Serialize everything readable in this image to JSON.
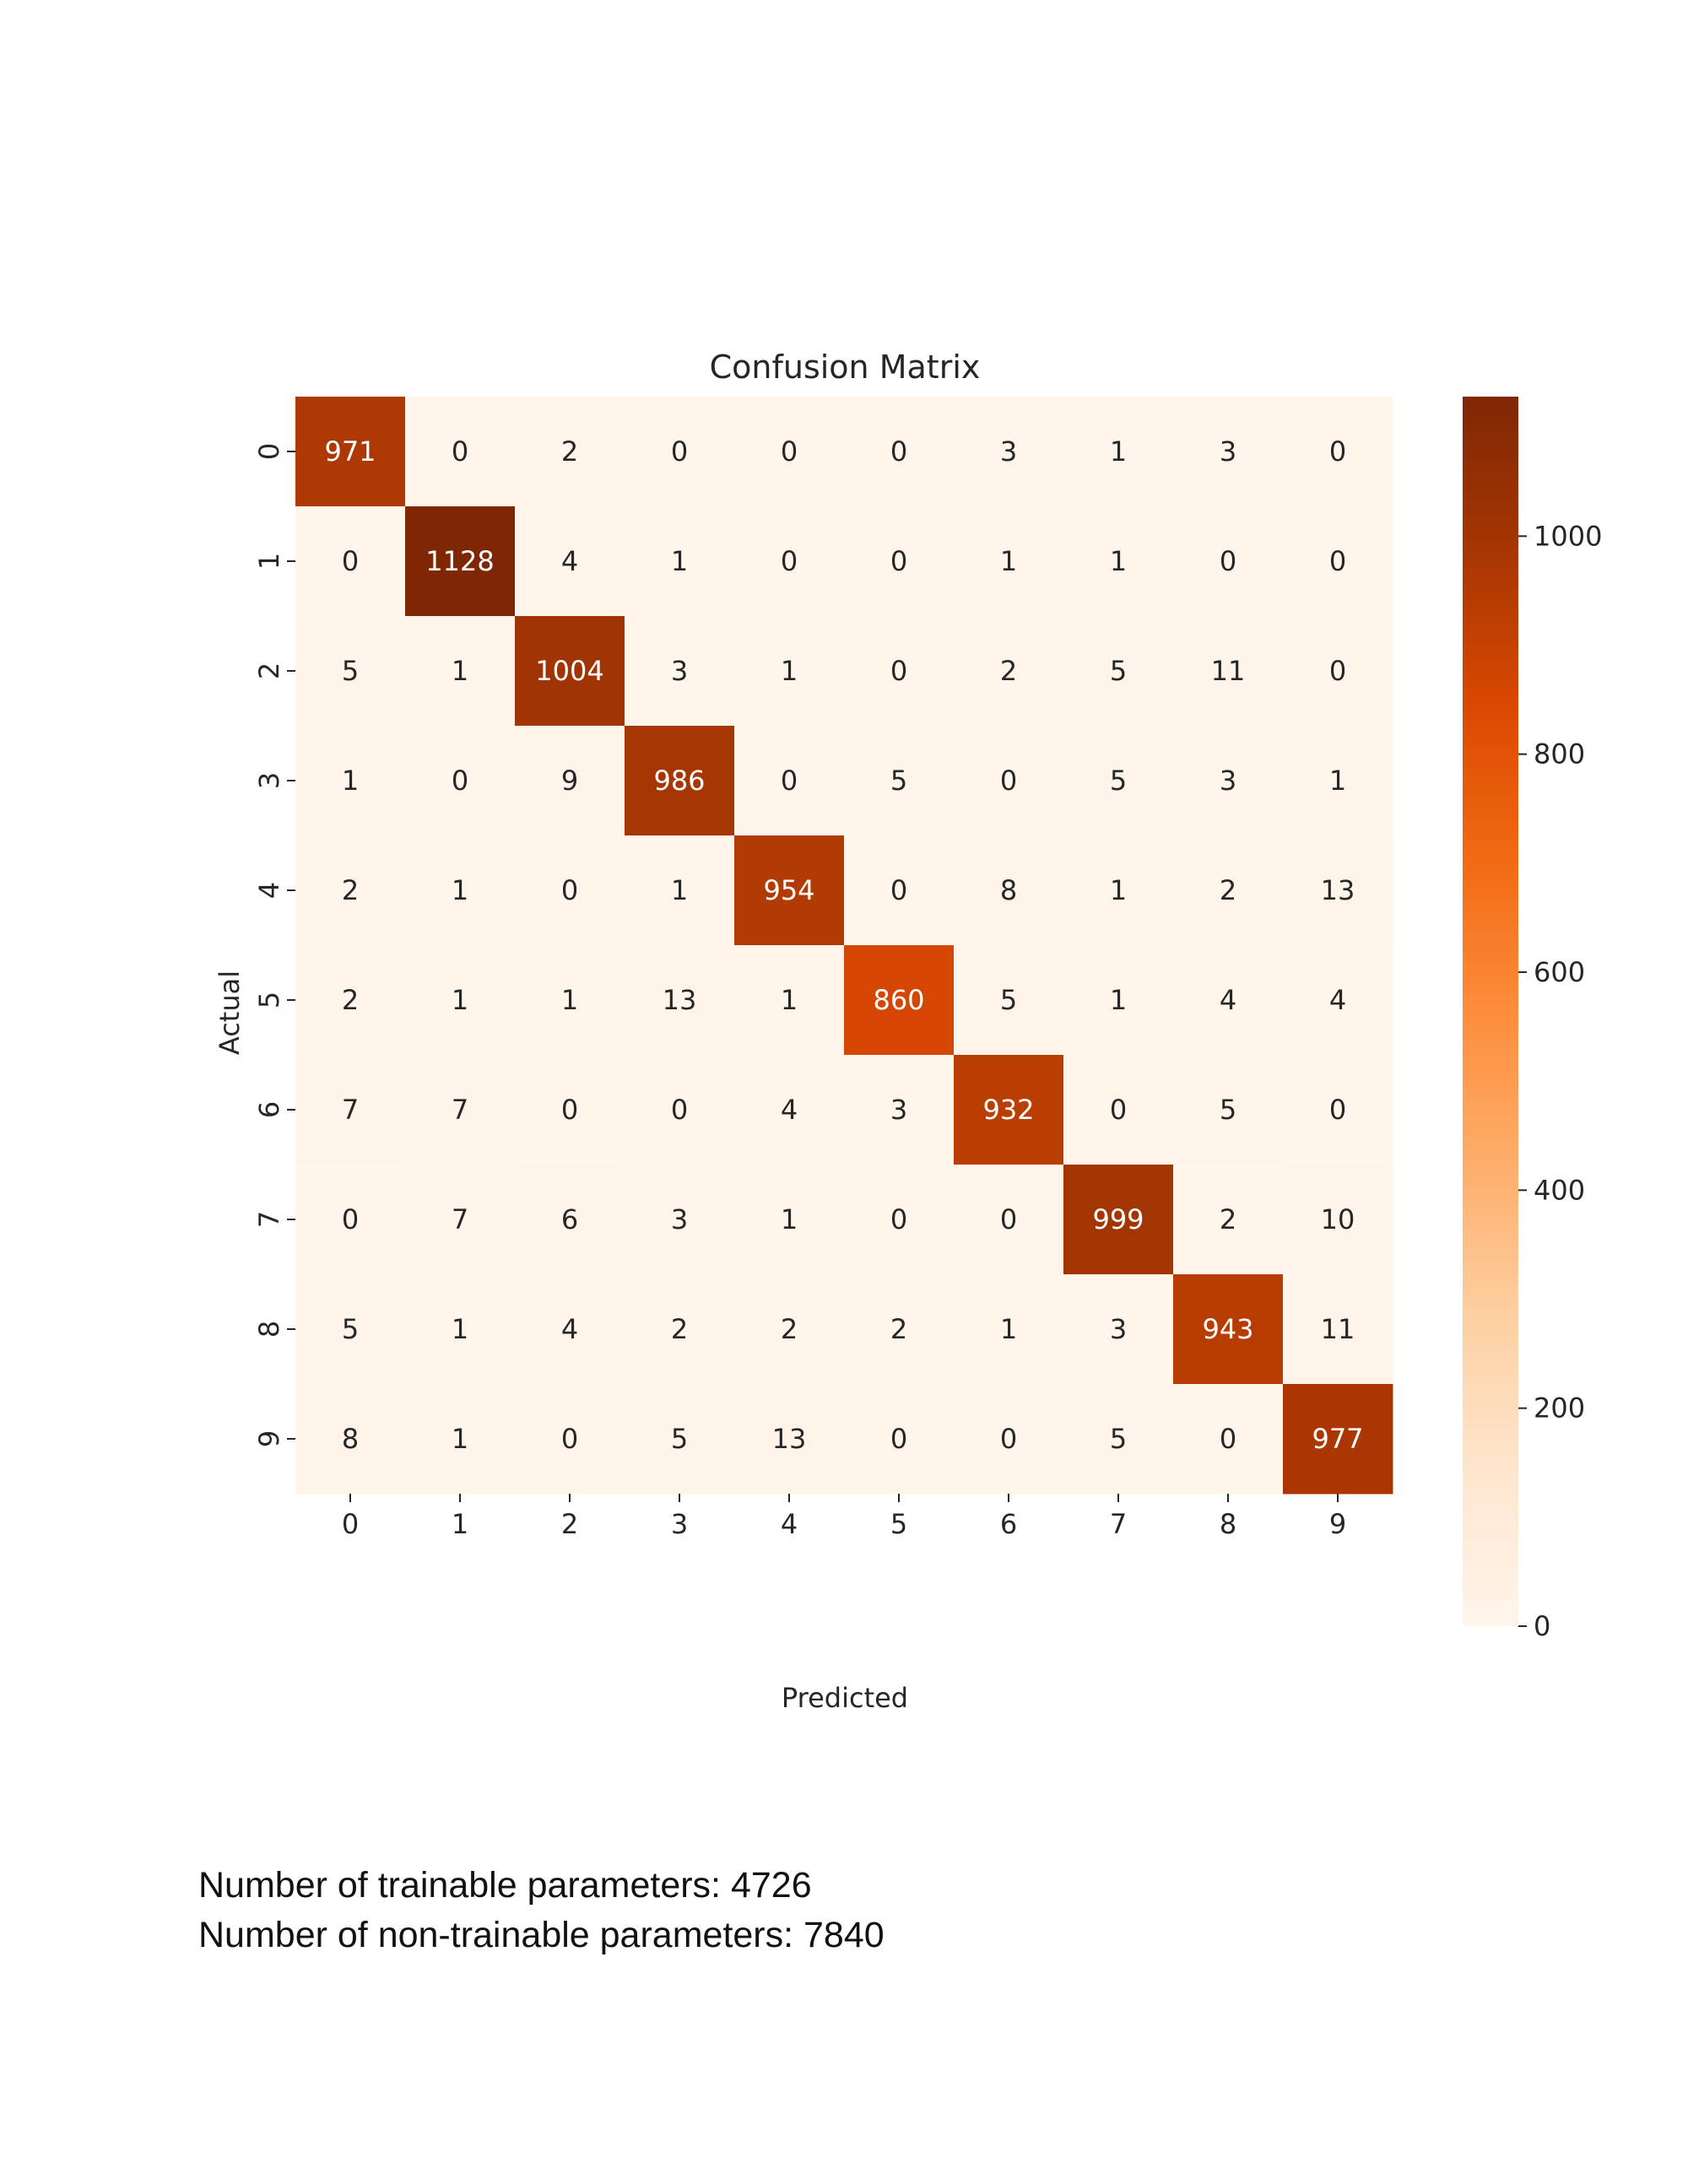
{
  "chart_data": {
    "type": "heatmap",
    "title": "Confusion Matrix",
    "xlabel": "Predicted",
    "ylabel": "Actual",
    "x_categories": [
      "0",
      "1",
      "2",
      "3",
      "4",
      "5",
      "6",
      "7",
      "8",
      "9"
    ],
    "y_categories": [
      "0",
      "1",
      "2",
      "3",
      "4",
      "5",
      "6",
      "7",
      "8",
      "9"
    ],
    "values": [
      [
        971,
        0,
        2,
        0,
        0,
        0,
        3,
        1,
        3,
        0
      ],
      [
        0,
        1128,
        4,
        1,
        0,
        0,
        1,
        1,
        0,
        0
      ],
      [
        5,
        1,
        1004,
        3,
        1,
        0,
        2,
        5,
        11,
        0
      ],
      [
        1,
        0,
        9,
        986,
        0,
        5,
        0,
        5,
        3,
        1
      ],
      [
        2,
        1,
        0,
        1,
        954,
        0,
        8,
        1,
        2,
        13
      ],
      [
        2,
        1,
        1,
        13,
        1,
        860,
        5,
        1,
        4,
        4
      ],
      [
        7,
        7,
        0,
        0,
        4,
        3,
        932,
        0,
        5,
        0
      ],
      [
        0,
        7,
        6,
        3,
        1,
        0,
        0,
        999,
        2,
        10
      ],
      [
        5,
        1,
        4,
        2,
        2,
        2,
        1,
        3,
        943,
        11
      ],
      [
        8,
        1,
        0,
        5,
        13,
        0,
        0,
        5,
        0,
        977
      ]
    ],
    "colorbar": {
      "range": [
        0,
        1128
      ],
      "ticks": [
        0,
        200,
        400,
        600,
        800,
        1000
      ],
      "colormap": "Oranges"
    },
    "grid": false
  },
  "notes": {
    "trainable": "Number of trainable parameters: 4726",
    "non_trainable": "Number of non-trainable parameters: 7840"
  }
}
